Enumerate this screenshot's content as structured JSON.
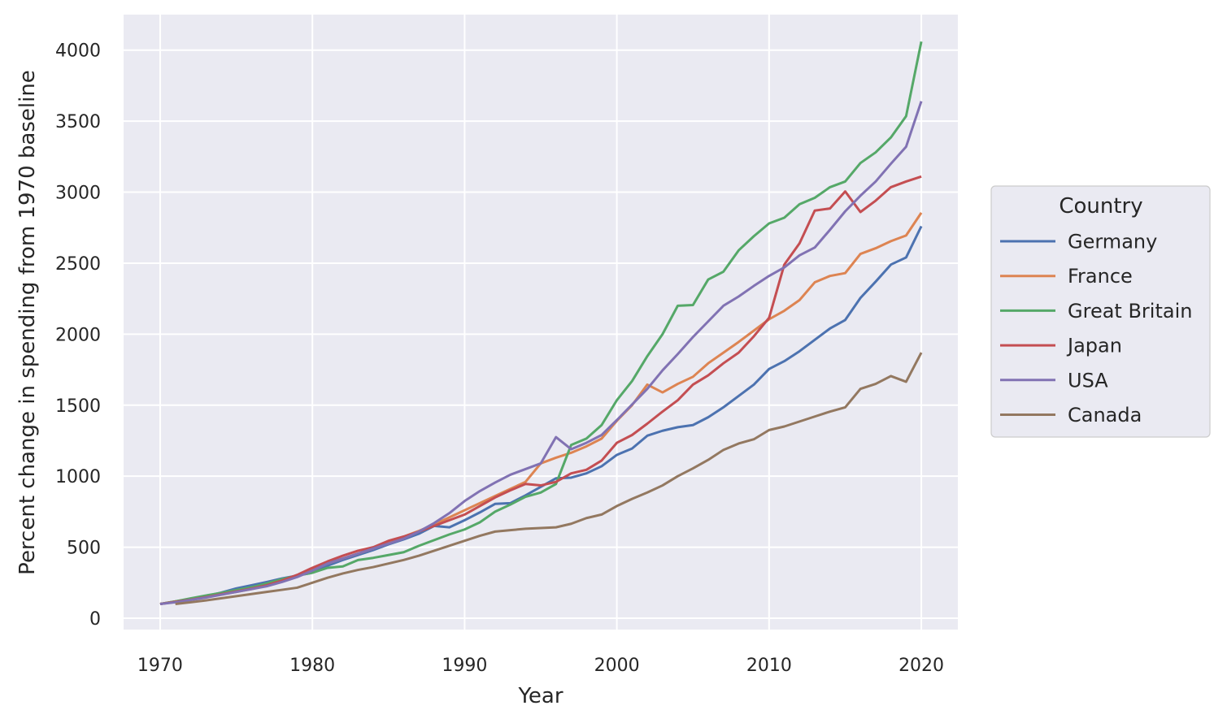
{
  "chart_data": {
    "type": "line",
    "xlabel": "Year",
    "ylabel": "Percent change in spending from 1970 baseline",
    "xlim": [
      1967.6,
      2022.4
    ],
    "ylim": [
      -80,
      4250
    ],
    "xticks": [
      1970,
      1980,
      1990,
      2000,
      2010,
      2020
    ],
    "yticks": [
      0,
      500,
      1000,
      1500,
      2000,
      2500,
      3000,
      3500,
      4000
    ],
    "grid": true,
    "legend": {
      "title": "Country",
      "placement": "right"
    },
    "series": [
      {
        "name": "Germany",
        "color": "#4c72b0",
        "x": [
          1970,
          1971,
          1972,
          1973,
          1974,
          1975,
          1976,
          1977,
          1978,
          1979,
          1980,
          1981,
          1982,
          1983,
          1984,
          1985,
          1986,
          1987,
          1988,
          1989,
          1990,
          1991,
          1992,
          1993,
          1994,
          1995,
          1996,
          1997,
          1998,
          1999,
          2000,
          2001,
          2002,
          2003,
          2004,
          2005,
          2006,
          2007,
          2008,
          2009,
          2010,
          2011,
          2012,
          2013,
          2014,
          2015,
          2016,
          2017,
          2018,
          2019,
          2020
        ],
        "y": [
          100,
          118,
          136,
          155,
          180,
          210,
          232,
          255,
          280,
          300,
          320,
          370,
          410,
          445,
          480,
          520,
          555,
          595,
          650,
          640,
          690,
          745,
          805,
          810,
          865,
          925,
          985,
          990,
          1020,
          1070,
          1150,
          1195,
          1285,
          1320,
          1345,
          1360,
          1415,
          1485,
          1565,
          1645,
          1755,
          1810,
          1880,
          1960,
          2040,
          2100,
          2255,
          2370,
          2490,
          2540,
          2760
        ]
      },
      {
        "name": "France",
        "color": "#dd8452",
        "x": [
          1970,
          1971,
          1972,
          1973,
          1974,
          1975,
          1976,
          1977,
          1978,
          1979,
          1980,
          1981,
          1982,
          1983,
          1984,
          1985,
          1986,
          1987,
          1988,
          1989,
          1990,
          1991,
          1992,
          1993,
          1994,
          1995,
          1996,
          1997,
          1998,
          1999,
          2000,
          2001,
          2002,
          2003,
          2004,
          2005,
          2006,
          2007,
          2008,
          2009,
          2010,
          2011,
          2012,
          2013,
          2014,
          2015,
          2016,
          2017,
          2018,
          2019,
          2020
        ],
        "y": [
          100,
          118,
          135,
          150,
          168,
          185,
          205,
          230,
          265,
          300,
          345,
          385,
          420,
          455,
          490,
          535,
          575,
          615,
          660,
          710,
          760,
          810,
          860,
          910,
          960,
          1090,
          1130,
          1165,
          1210,
          1265,
          1390,
          1500,
          1645,
          1590,
          1650,
          1700,
          1795,
          1870,
          1945,
          2025,
          2105,
          2165,
          2240,
          2365,
          2410,
          2430,
          2565,
          2605,
          2655,
          2695,
          2855
        ]
      },
      {
        "name": "Great Britain",
        "color": "#55a868",
        "x": [
          1970,
          1971,
          1972,
          1973,
          1974,
          1975,
          1976,
          1977,
          1978,
          1979,
          1980,
          1981,
          1982,
          1983,
          1984,
          1985,
          1986,
          1987,
          1988,
          1989,
          1990,
          1991,
          1992,
          1993,
          1994,
          1995,
          1996,
          1997,
          1998,
          1999,
          2000,
          2001,
          2002,
          2003,
          2004,
          2005,
          2006,
          2007,
          2008,
          2009,
          2010,
          2011,
          2012,
          2013,
          2014,
          2015,
          2016,
          2017,
          2018,
          2019,
          2020
        ],
        "y": [
          100,
          118,
          140,
          160,
          178,
          198,
          218,
          245,
          275,
          300,
          320,
          355,
          365,
          410,
          425,
          445,
          465,
          510,
          550,
          590,
          625,
          675,
          750,
          800,
          855,
          885,
          945,
          1220,
          1265,
          1360,
          1535,
          1670,
          1845,
          2000,
          2200,
          2205,
          2385,
          2440,
          2590,
          2690,
          2780,
          2820,
          2915,
          2960,
          3035,
          3075,
          3205,
          3280,
          3385,
          3535,
          4060
        ]
      },
      {
        "name": "Japan",
        "color": "#c44e52",
        "x": [
          1970,
          1971,
          1972,
          1973,
          1974,
          1975,
          1976,
          1977,
          1978,
          1979,
          1980,
          1981,
          1982,
          1983,
          1984,
          1985,
          1986,
          1987,
          1988,
          1989,
          1990,
          1991,
          1992,
          1993,
          1994,
          1995,
          1996,
          1997,
          1998,
          1999,
          2000,
          2001,
          2002,
          2003,
          2004,
          2005,
          2006,
          2007,
          2008,
          2009,
          2010,
          2011,
          2012,
          2013,
          2014,
          2015,
          2016,
          2017,
          2018,
          2019,
          2020
        ],
        "y": [
          100,
          115,
          130,
          148,
          168,
          188,
          208,
          232,
          265,
          305,
          355,
          400,
          440,
          475,
          500,
          545,
          575,
          610,
          650,
          690,
          730,
          790,
          850,
          900,
          945,
          935,
          960,
          1020,
          1045,
          1110,
          1235,
          1290,
          1370,
          1455,
          1535,
          1645,
          1710,
          1795,
          1870,
          1985,
          2115,
          2490,
          2640,
          2870,
          2885,
          3005,
          2860,
          2940,
          3035,
          3075,
          3110
        ]
      },
      {
        "name": "USA",
        "color": "#8172b3",
        "x": [
          1970,
          1971,
          1972,
          1973,
          1974,
          1975,
          1976,
          1977,
          1978,
          1979,
          1980,
          1981,
          1982,
          1983,
          1984,
          1985,
          1986,
          1987,
          1988,
          1989,
          1990,
          1991,
          1992,
          1993,
          1994,
          1995,
          1996,
          1997,
          1998,
          1999,
          2000,
          2001,
          2002,
          2003,
          2004,
          2005,
          2006,
          2007,
          2008,
          2009,
          2010,
          2011,
          2012,
          2013,
          2014,
          2015,
          2016,
          2017,
          2018,
          2019,
          2020
        ],
        "y": [
          100,
          112,
          128,
          145,
          165,
          185,
          205,
          225,
          255,
          290,
          335,
          385,
          420,
          455,
          490,
          525,
          560,
          610,
          670,
          740,
          825,
          895,
          955,
          1010,
          1050,
          1090,
          1275,
          1190,
          1235,
          1290,
          1395,
          1505,
          1615,
          1745,
          1860,
          1980,
          2090,
          2200,
          2265,
          2340,
          2410,
          2470,
          2555,
          2610,
          2735,
          2865,
          2975,
          3075,
          3200,
          3320,
          3640
        ]
      },
      {
        "name": "Canada",
        "color": "#937860",
        "x": [
          1971,
          1972,
          1973,
          1974,
          1975,
          1976,
          1977,
          1978,
          1979,
          1980,
          1981,
          1982,
          1983,
          1984,
          1985,
          1986,
          1987,
          1988,
          1989,
          1990,
          1991,
          1992,
          1993,
          1994,
          1995,
          1996,
          1997,
          1998,
          1999,
          2000,
          2001,
          2002,
          2003,
          2004,
          2005,
          2006,
          2007,
          2008,
          2009,
          2010,
          2011,
          2012,
          2013,
          2014,
          2015,
          2016,
          2017,
          2018,
          2019,
          2020
        ],
        "y": [
          100,
          112,
          125,
          140,
          155,
          170,
          185,
          200,
          215,
          250,
          285,
          315,
          340,
          360,
          385,
          410,
          440,
          475,
          510,
          545,
          580,
          610,
          620,
          630,
          635,
          640,
          665,
          705,
          730,
          790,
          840,
          885,
          935,
          1000,
          1055,
          1115,
          1185,
          1230,
          1260,
          1325,
          1350,
          1385,
          1420,
          1455,
          1485,
          1615,
          1650,
          1705,
          1665,
          1870
        ]
      }
    ]
  }
}
